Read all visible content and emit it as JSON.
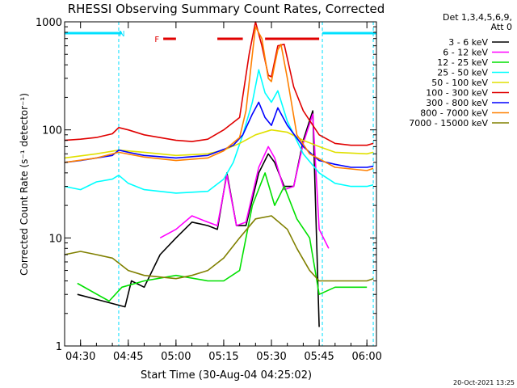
{
  "chart_data": {
    "type": "line",
    "title": "RHESSI Observing Summary Count Rates, Corrected",
    "xlabel": "Start Time (30-Aug-04 04:25:02)",
    "ylabel": "Corrected Count Rate (s⁻¹ detector⁻¹)",
    "y_scale": "log",
    "xlim": [
      "04:25",
      "06:03"
    ],
    "ylim": [
      1,
      1000
    ],
    "x_ticks": [
      "04:30",
      "04:45",
      "05:00",
      "05:15",
      "05:30",
      "05:45",
      "06:00"
    ],
    "y_ticks": [
      1,
      10,
      100,
      1000
    ],
    "y_tick_labels": [
      "1",
      "10",
      "100",
      "1000"
    ],
    "legend_header": [
      "Det 1,3,4,5,6,9,",
      "Att 0"
    ],
    "legend_position": "right",
    "timestamp": "20-Oct-2021 13:25",
    "annotations": [
      {
        "text": "N",
        "time": "04:43",
        "color": "#00e0ff",
        "type": "night",
        "spans": [
          [
            "04:25",
            "04:43"
          ],
          [
            "05:46",
            "06:03"
          ]
        ]
      },
      {
        "text": "F",
        "time": "04:54",
        "color": "#e00000",
        "type": "flare",
        "spans": [
          [
            "04:56",
            "05:00"
          ],
          [
            "05:13",
            "05:21"
          ],
          [
            "05:28",
            "05:45"
          ]
        ]
      }
    ],
    "vlines": [
      "04:42",
      "05:46",
      "06:02"
    ],
    "series": [
      {
        "name": "3 - 6 keV",
        "color": "#000000",
        "x": [
          "04:29",
          "04:44",
          "04:46",
          "04:50",
          "04:55",
          "05:00",
          "05:05",
          "05:10",
          "05:13",
          "05:16",
          "05:19",
          "05:22",
          "05:26",
          "05:29",
          "05:31",
          "05:34",
          "05:37",
          "05:40",
          "05:43",
          "05:45"
        ],
        "y": [
          3,
          2.3,
          4,
          3.5,
          7,
          10,
          14,
          13,
          12,
          40,
          13,
          13,
          40,
          60,
          50,
          30,
          30,
          80,
          150,
          1.5
        ]
      },
      {
        "name": "6 - 12 keV",
        "color": "#ff00ff",
        "x": [
          "04:55",
          "05:00",
          "05:05",
          "05:10",
          "05:13",
          "05:16",
          "05:19",
          "05:22",
          "05:26",
          "05:29",
          "05:31",
          "05:34",
          "05:37",
          "05:40",
          "05:43",
          "05:45",
          "05:48"
        ],
        "y": [
          10,
          12,
          16,
          14,
          13,
          38,
          13,
          14,
          45,
          70,
          55,
          28,
          30,
          75,
          140,
          12,
          8
        ]
      },
      {
        "name": "12 - 25 keV",
        "color": "#00e000",
        "x": [
          "04:29",
          "04:39",
          "04:43",
          "04:50",
          "05:00",
          "05:10",
          "05:15",
          "05:20",
          "05:24",
          "05:28",
          "05:31",
          "05:34",
          "05:38",
          "05:42",
          "05:45",
          "05:50",
          "05:55",
          "06:00"
        ],
        "y": [
          3.8,
          2.6,
          3.5,
          4,
          4.5,
          4,
          4,
          5,
          20,
          40,
          20,
          30,
          15,
          10,
          3,
          3.5,
          3.5,
          3.5
        ]
      },
      {
        "name": "25 - 50 keV",
        "color": "#00ffff",
        "x": [
          "04:25",
          "04:30",
          "04:35",
          "04:40",
          "04:42",
          "04:45",
          "04:50",
          "05:00",
          "05:10",
          "05:15",
          "05:18",
          "05:21",
          "05:24",
          "05:26",
          "05:28",
          "05:30",
          "05:32",
          "05:35",
          "05:40",
          "05:45",
          "05:50",
          "05:55",
          "06:00",
          "06:02"
        ],
        "y": [
          30,
          28,
          33,
          35,
          38,
          32,
          28,
          26,
          27,
          35,
          50,
          90,
          180,
          360,
          220,
          180,
          230,
          120,
          60,
          40,
          32,
          30,
          30,
          31
        ]
      },
      {
        "name": "50 - 100 keV",
        "color": "#e0e000",
        "x": [
          "04:25",
          "04:35",
          "04:42",
          "04:50",
          "05:00",
          "05:10",
          "05:15",
          "05:20",
          "05:25",
          "05:30",
          "05:35",
          "05:40",
          "05:45",
          "05:50",
          "06:00",
          "06:02"
        ],
        "y": [
          55,
          60,
          65,
          62,
          58,
          60,
          65,
          75,
          90,
          100,
          95,
          80,
          70,
          62,
          60,
          62
        ]
      },
      {
        "name": "100 - 300 keV",
        "color": "#e00000",
        "x": [
          "04:25",
          "04:30",
          "04:35",
          "04:40",
          "04:42",
          "04:45",
          "04:50",
          "05:00",
          "05:05",
          "05:10",
          "05:15",
          "05:20",
          "05:23",
          "05:25",
          "05:27",
          "05:29",
          "05:30",
          "05:32",
          "05:34",
          "05:37",
          "05:40",
          "05:45",
          "05:50",
          "05:55",
          "06:00",
          "06:02"
        ],
        "y": [
          80,
          82,
          85,
          92,
          105,
          100,
          90,
          80,
          78,
          82,
          100,
          130,
          500,
          1000,
          600,
          320,
          310,
          600,
          620,
          250,
          150,
          90,
          75,
          72,
          72,
          75
        ]
      },
      {
        "name": "300 - 800 keV",
        "color": "#0000ff",
        "x": [
          "04:25",
          "04:30",
          "04:35",
          "04:40",
          "04:42",
          "04:45",
          "04:50",
          "05:00",
          "05:10",
          "05:15",
          "05:18",
          "05:21",
          "05:24",
          "05:26",
          "05:28",
          "05:30",
          "05:32",
          "05:35",
          "05:40",
          "05:45",
          "05:50",
          "05:55",
          "06:00",
          "06:02"
        ],
        "y": [
          50,
          52,
          55,
          58,
          65,
          62,
          58,
          55,
          58,
          66,
          72,
          90,
          140,
          180,
          130,
          110,
          160,
          110,
          70,
          52,
          48,
          45,
          45,
          46
        ]
      },
      {
        "name": "800 - 7000 keV",
        "color": "#ff8000",
        "x": [
          "04:25",
          "04:35",
          "04:42",
          "04:50",
          "05:00",
          "05:10",
          "05:15",
          "05:20",
          "05:22",
          "05:24",
          "05:25",
          "05:27",
          "05:29",
          "05:30",
          "05:31",
          "05:32",
          "05:33",
          "05:35",
          "05:38",
          "05:42",
          "05:50",
          "06:00",
          "06:02"
        ],
        "y": [
          50,
          55,
          62,
          56,
          52,
          55,
          64,
          85,
          150,
          500,
          900,
          700,
          300,
          280,
          400,
          550,
          620,
          300,
          90,
          60,
          45,
          42,
          44
        ]
      },
      {
        "name": "7000 - 15000 keV",
        "color": "#808000",
        "x": [
          "04:25",
          "04:30",
          "04:35",
          "04:40",
          "04:45",
          "04:50",
          "05:00",
          "05:05",
          "05:10",
          "05:15",
          "05:20",
          "05:25",
          "05:30",
          "05:35",
          "05:38",
          "05:42",
          "05:45",
          "05:50",
          "05:55",
          "06:00",
          "06:02"
        ],
        "y": [
          7,
          7.5,
          7,
          6.5,
          5,
          4.5,
          4.2,
          4.5,
          5,
          6.5,
          10,
          15,
          16,
          12,
          8,
          5,
          4,
          4,
          4,
          4,
          4.2
        ]
      }
    ]
  }
}
